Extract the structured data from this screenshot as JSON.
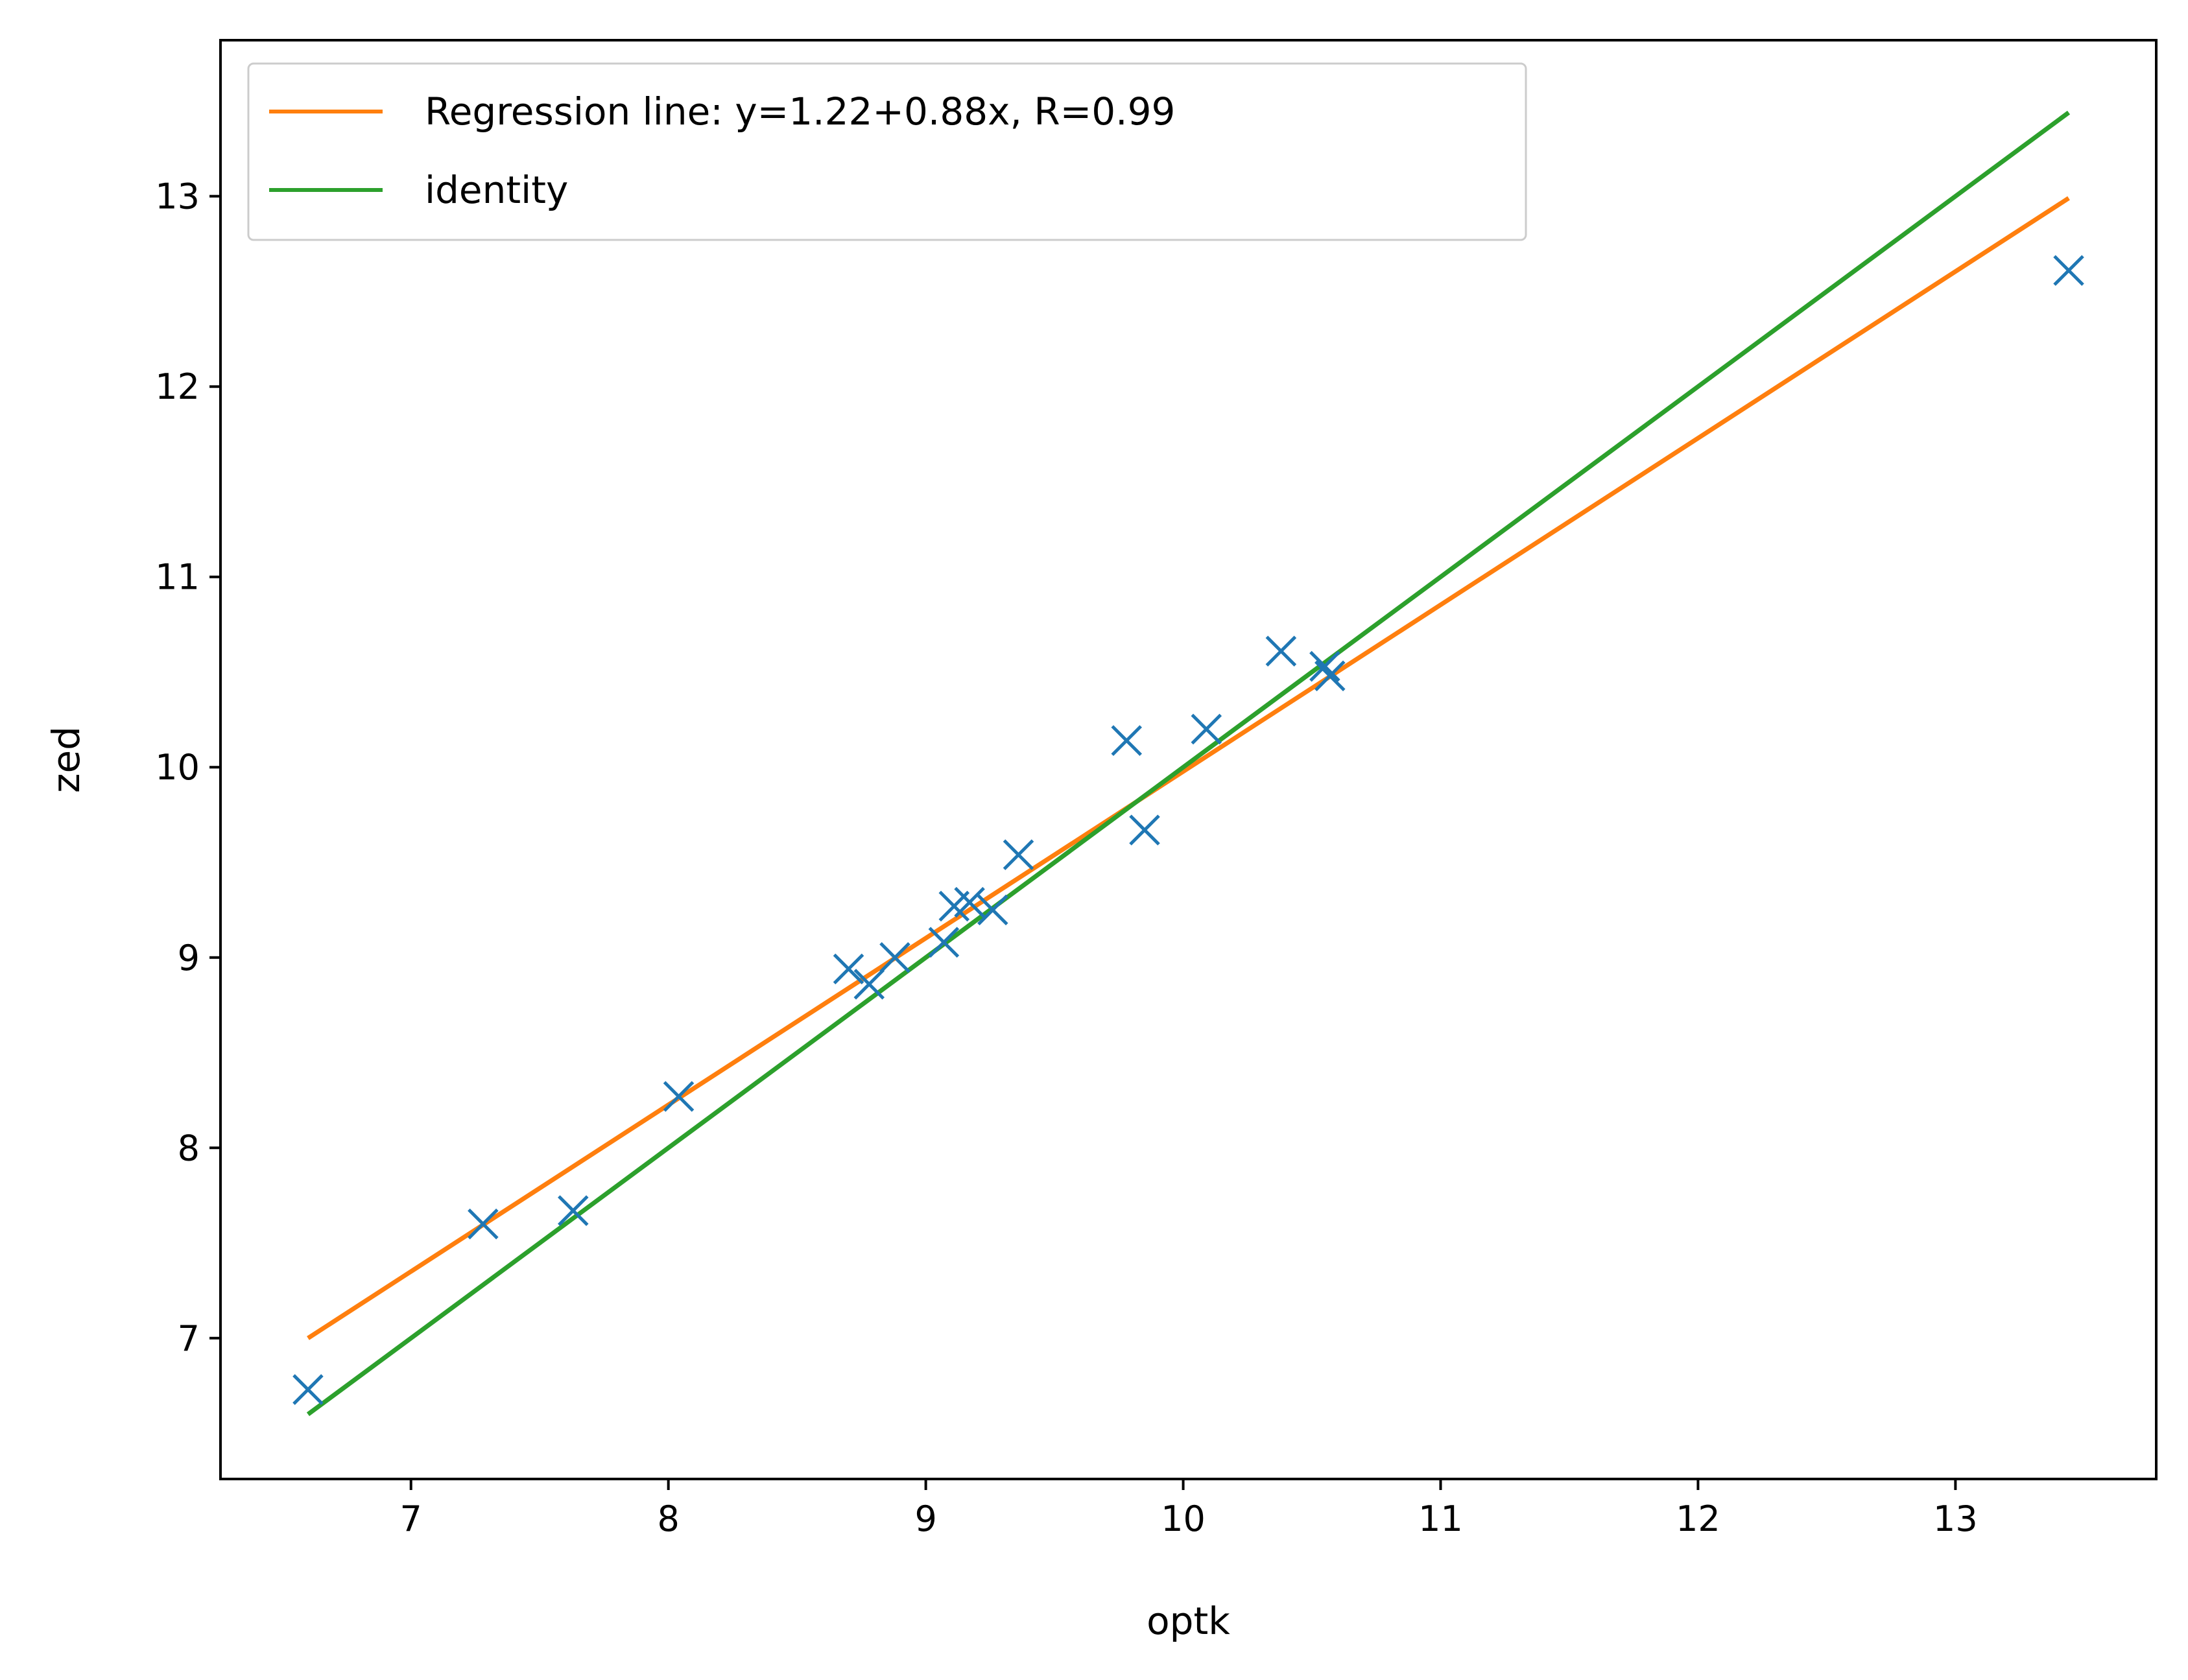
{
  "chart_data": {
    "type": "scatter",
    "xlabel": "optk",
    "ylabel": "zed",
    "xlim": [
      6.26,
      13.78
    ],
    "ylim": [
      6.26,
      13.82
    ],
    "xticks": [
      "7",
      "8",
      "9",
      "10",
      "11",
      "12",
      "13"
    ],
    "yticks": [
      "7",
      "8",
      "9",
      "10",
      "11",
      "12",
      "13"
    ],
    "grid": false,
    "legend_position": "top-left",
    "points": {
      "marker": "x",
      "color": "#1f77b4",
      "x": [
        6.6,
        7.28,
        7.63,
        8.04,
        8.7,
        8.78,
        8.88,
        9.07,
        9.11,
        9.17,
        9.26,
        9.36,
        9.78,
        9.85,
        10.09,
        10.38,
        10.55,
        10.57,
        13.44
      ],
      "y": [
        6.73,
        7.6,
        7.67,
        8.27,
        8.94,
        8.86,
        9.0,
        9.08,
        9.27,
        9.29,
        9.25,
        9.54,
        10.14,
        9.67,
        10.2,
        10.61,
        10.53,
        10.48,
        12.61
      ]
    },
    "series": [
      {
        "name": "Regression line: y=1.22+0.88x, R=0.99",
        "color": "#ff7f0e",
        "x": [
          6.6,
          13.44
        ],
        "y": [
          7.0,
          12.99
        ]
      },
      {
        "name": "identity",
        "color": "#2ca02c",
        "x": [
          6.6,
          13.44
        ],
        "y": [
          6.6,
          13.44
        ]
      }
    ]
  }
}
